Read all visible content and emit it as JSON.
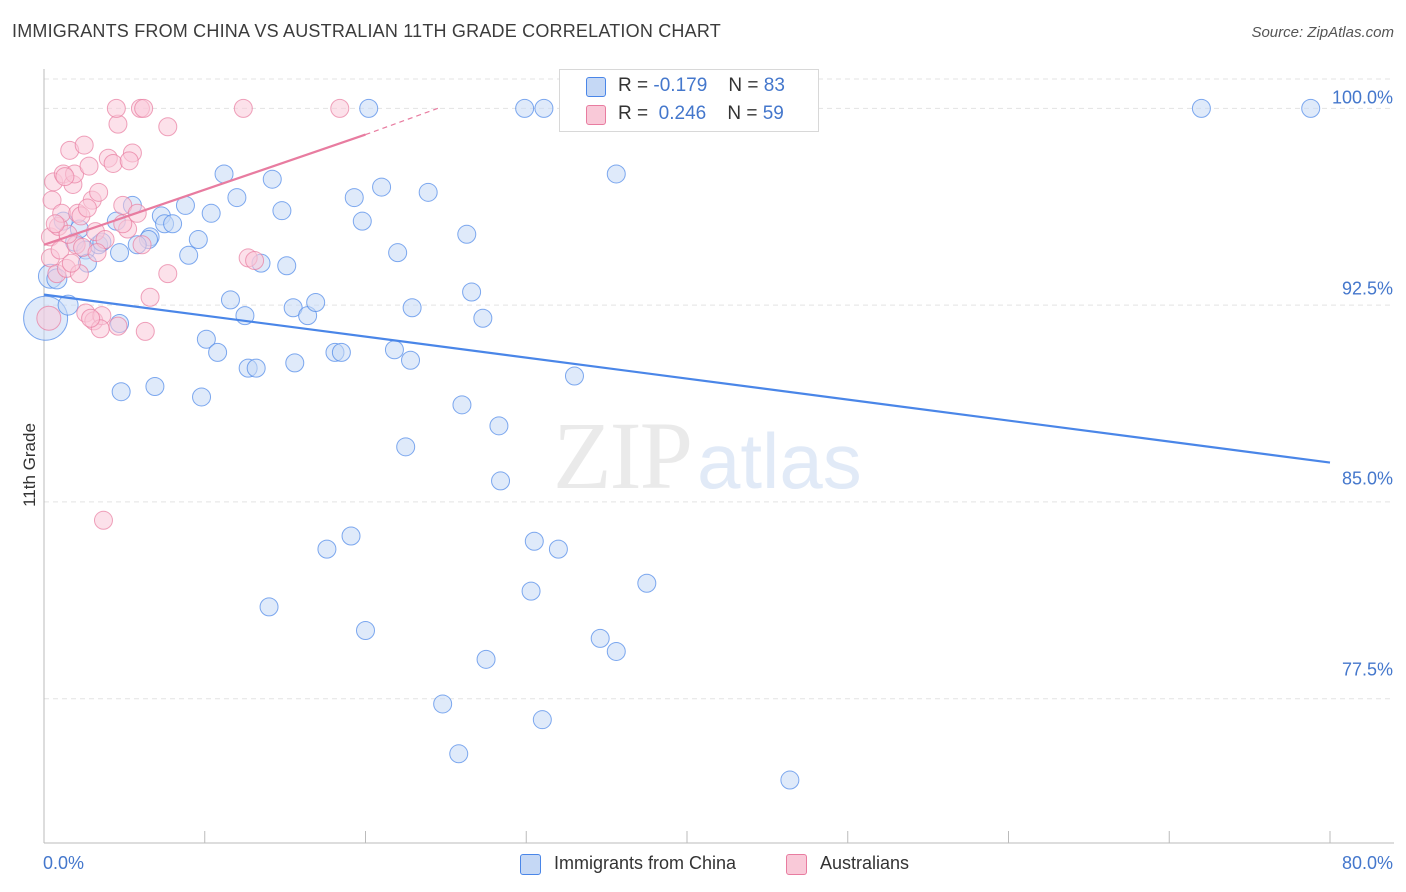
{
  "title": "IMMIGRANTS FROM CHINA VS AUSTRALIAN 11TH GRADE CORRELATION CHART",
  "source": "Source: ZipAtlas.com",
  "watermark": {
    "zip": "ZIP",
    "atlas": "atlas"
  },
  "legend": {
    "rows": [
      {
        "r_label": "R =",
        "r_value": "-0.179",
        "n_label": "N =",
        "n_value": "83",
        "color": "#4a86e8",
        "fill": "#c5d8f5"
      },
      {
        "r_label": "R =",
        "r_value": "0.246",
        "n_label": "N =",
        "n_value": "59",
        "color": "#e87ca0",
        "fill": "#f9c9d8"
      }
    ]
  },
  "bottom_legend": [
    {
      "label": "Immigrants from China",
      "fill": "#c5d8f5",
      "stroke": "#4a86e8"
    },
    {
      "label": "Australians",
      "fill": "#f9c9d8",
      "stroke": "#e87ca0"
    }
  ],
  "chart_data": {
    "type": "scatter",
    "title": "IMMIGRANTS FROM CHINA VS AUSTRALIAN 11TH GRADE CORRELATION CHART",
    "xlabel": "",
    "ylabel": "11th Grade",
    "xlim": [
      0,
      80
    ],
    "ylim": [
      72,
      101.5
    ],
    "x_tick_labels": [
      "0.0%",
      "80.0%"
    ],
    "y_ticks": [
      77.5,
      85.0,
      92.5,
      100.0
    ],
    "y_tick_labels": [
      "77.5%",
      "85.0%",
      "92.5%",
      "100.0%"
    ],
    "grid": true,
    "legend_position": "top-center",
    "series": [
      {
        "name": "Immigrants from China",
        "color": "#4a86e8",
        "fill": "#c5d8f5",
        "trend": {
          "x": [
            0,
            80
          ],
          "y": [
            92.9,
            86.5
          ]
        },
        "points": [
          [
            0.1,
            92.0,
            22
          ],
          [
            0.4,
            93.6,
            12
          ],
          [
            0.8,
            93.5,
            10
          ],
          [
            1.5,
            92.5,
            10
          ],
          [
            1.9,
            94.9,
            9
          ],
          [
            2.2,
            95.4,
            9
          ],
          [
            2.6,
            94.6,
            9
          ],
          [
            3.4,
            94.8,
            9
          ],
          [
            2.7,
            94.1,
            9
          ],
          [
            4.5,
            95.7,
            9
          ],
          [
            4.7,
            94.5,
            9
          ],
          [
            5.5,
            96.3,
            9
          ],
          [
            6.6,
            95.1,
            9
          ],
          [
            7.3,
            95.9,
            9
          ],
          [
            7.5,
            95.6,
            9
          ],
          [
            8.0,
            95.6,
            9
          ],
          [
            6.5,
            95.0,
            9
          ],
          [
            9.0,
            94.4,
            9
          ],
          [
            10.4,
            96.0,
            9
          ],
          [
            11.2,
            97.5,
            9
          ],
          [
            12.0,
            96.6,
            9
          ],
          [
            14.2,
            97.3,
            9
          ],
          [
            14.8,
            96.1,
            9
          ],
          [
            13.5,
            94.1,
            9
          ],
          [
            15.1,
            94.0,
            9
          ],
          [
            11.6,
            92.7,
            9
          ],
          [
            12.5,
            92.1,
            9
          ],
          [
            15.5,
            92.4,
            9
          ],
          [
            16.4,
            92.1,
            9
          ],
          [
            16.9,
            92.6,
            9
          ],
          [
            10.1,
            91.2,
            9
          ],
          [
            10.8,
            90.7,
            9
          ],
          [
            12.7,
            90.1,
            9
          ],
          [
            13.2,
            90.1,
            9
          ],
          [
            15.6,
            90.3,
            9
          ],
          [
            18.1,
            90.7,
            9
          ],
          [
            18.5,
            90.7,
            9
          ],
          [
            19.3,
            96.6,
            9
          ],
          [
            19.8,
            95.7,
            9
          ],
          [
            21.0,
            97.0,
            9
          ],
          [
            22.0,
            94.5,
            9
          ],
          [
            23.9,
            96.8,
            9
          ],
          [
            22.9,
            92.4,
            9
          ],
          [
            21.8,
            90.8,
            9
          ],
          [
            22.8,
            90.4,
            9
          ],
          [
            26.3,
            95.2,
            9
          ],
          [
            26.6,
            93.0,
            9
          ],
          [
            27.3,
            92.0,
            9
          ],
          [
            26.0,
            88.7,
            9
          ],
          [
            28.3,
            87.9,
            9
          ],
          [
            4.7,
            91.8,
            9
          ],
          [
            4.8,
            89.2,
            9
          ],
          [
            6.9,
            89.4,
            9
          ],
          [
            9.8,
            89.0,
            9
          ],
          [
            22.5,
            87.1,
            9
          ],
          [
            28.4,
            85.8,
            9
          ],
          [
            33.0,
            89.8,
            9
          ],
          [
            19.1,
            83.7,
            9
          ],
          [
            17.6,
            83.2,
            9
          ],
          [
            30.5,
            83.5,
            9
          ],
          [
            32.0,
            83.2,
            9
          ],
          [
            30.3,
            81.6,
            9
          ],
          [
            14.0,
            81.0,
            9
          ],
          [
            20.0,
            80.1,
            9
          ],
          [
            37.5,
            81.9,
            9
          ],
          [
            34.6,
            79.8,
            9
          ],
          [
            35.6,
            79.3,
            9
          ],
          [
            27.5,
            79.0,
            9
          ],
          [
            24.8,
            77.3,
            9
          ],
          [
            31.0,
            76.7,
            9
          ],
          [
            25.8,
            75.4,
            9
          ],
          [
            46.4,
            74.4,
            9
          ],
          [
            20.2,
            100.0,
            9
          ],
          [
            29.9,
            100.0,
            9
          ],
          [
            31.1,
            100.0,
            9
          ],
          [
            72.0,
            100.0,
            9
          ],
          [
            78.8,
            100.0,
            9
          ],
          [
            35.6,
            97.5,
            9
          ],
          [
            3.6,
            94.9,
            9
          ],
          [
            5.8,
            94.8,
            9
          ],
          [
            8.8,
            96.3,
            9
          ],
          [
            9.6,
            95.0,
            9
          ],
          [
            1.2,
            95.7,
            9
          ]
        ]
      },
      {
        "name": "Australians",
        "color": "#e87ca0",
        "fill": "#f9c9d8",
        "trend": {
          "x": [
            0,
            20
          ],
          "y": [
            94.8,
            99.0
          ]
        },
        "trend_dashed": {
          "x": [
            20,
            24.5
          ],
          "y": [
            99.0,
            100.0
          ]
        },
        "points": [
          [
            0.3,
            92.0,
            12
          ],
          [
            0.4,
            95.1,
            9
          ],
          [
            0.5,
            96.5,
            9
          ],
          [
            0.6,
            97.2,
            9
          ],
          [
            0.4,
            94.3,
            9
          ],
          [
            0.8,
            93.7,
            9
          ],
          [
            0.9,
            95.5,
            9
          ],
          [
            1.1,
            96.0,
            9
          ],
          [
            1.2,
            97.5,
            9
          ],
          [
            1.0,
            94.6,
            9
          ],
          [
            1.4,
            93.9,
            9
          ],
          [
            1.6,
            98.4,
            9
          ],
          [
            1.8,
            97.1,
            9
          ],
          [
            1.9,
            97.5,
            9
          ],
          [
            2.1,
            96.0,
            9
          ],
          [
            2.3,
            95.9,
            9
          ],
          [
            2.0,
            94.8,
            9
          ],
          [
            2.5,
            98.6,
            9
          ],
          [
            2.8,
            97.8,
            9
          ],
          [
            3.0,
            96.5,
            9
          ],
          [
            3.2,
            95.3,
            9
          ],
          [
            3.4,
            96.8,
            9
          ],
          [
            2.2,
            93.7,
            9
          ],
          [
            2.6,
            92.2,
            9
          ],
          [
            3.1,
            91.9,
            9
          ],
          [
            3.6,
            92.1,
            9
          ],
          [
            3.5,
            91.6,
            9
          ],
          [
            4.0,
            98.1,
            9
          ],
          [
            4.3,
            97.9,
            9
          ],
          [
            4.6,
            99.4,
            9
          ],
          [
            4.9,
            96.3,
            9
          ],
          [
            5.2,
            95.4,
            9
          ],
          [
            5.5,
            98.3,
            9
          ],
          [
            5.3,
            98.0,
            9
          ],
          [
            6.1,
            94.8,
            9
          ],
          [
            4.6,
            91.7,
            9
          ],
          [
            6.3,
            91.5,
            9
          ],
          [
            6.6,
            92.8,
            9
          ],
          [
            7.7,
            93.7,
            9
          ],
          [
            7.7,
            99.3,
            9
          ],
          [
            4.5,
            100.0,
            9
          ],
          [
            6.0,
            100.0,
            9
          ],
          [
            6.2,
            100.0,
            9
          ],
          [
            12.4,
            100.0,
            9
          ],
          [
            18.4,
            100.0,
            9
          ],
          [
            12.7,
            94.3,
            9
          ],
          [
            13.1,
            94.2,
            9
          ],
          [
            3.7,
            84.3,
            9
          ],
          [
            1.5,
            95.2,
            9
          ],
          [
            2.4,
            94.7,
            9
          ],
          [
            3.8,
            95.0,
            9
          ],
          [
            4.9,
            95.6,
            9
          ],
          [
            1.3,
            97.4,
            9
          ],
          [
            0.7,
            95.6,
            9
          ],
          [
            2.7,
            96.2,
            9
          ],
          [
            3.3,
            94.5,
            9
          ],
          [
            5.8,
            96.0,
            9
          ],
          [
            1.7,
            94.1,
            9
          ],
          [
            2.9,
            92.0,
            9
          ]
        ]
      }
    ]
  }
}
